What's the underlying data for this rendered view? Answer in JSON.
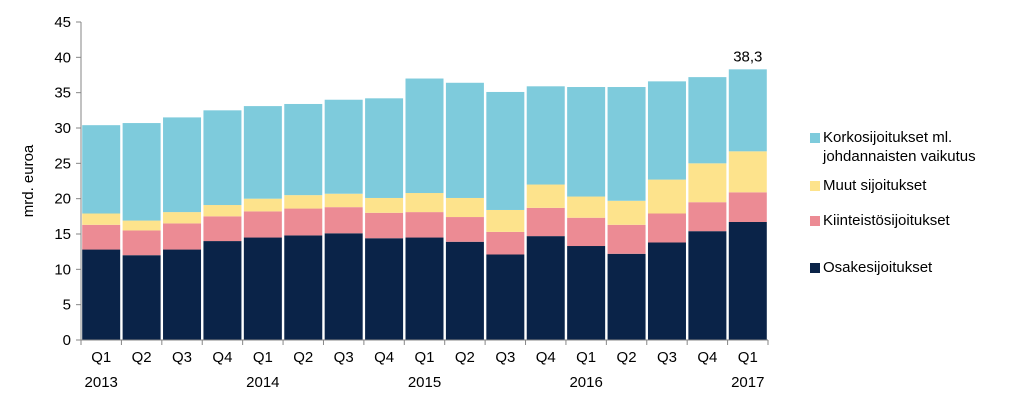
{
  "chart_data": {
    "type": "bar",
    "stacked": true,
    "ylabel": "mrd. euroa",
    "ylim": [
      0,
      45
    ],
    "yticks": [
      0,
      5,
      10,
      15,
      20,
      25,
      30,
      35,
      40,
      45
    ],
    "grid": false,
    "legend_position": "right",
    "categories": [
      "Q1",
      "Q2",
      "Q3",
      "Q4",
      "Q1",
      "Q2",
      "Q3",
      "Q4",
      "Q1",
      "Q2",
      "Q3",
      "Q4",
      "Q1",
      "Q2",
      "Q3",
      "Q4",
      "Q1"
    ],
    "year_labels": [
      {
        "index": 0,
        "label": "2013"
      },
      {
        "index": 4,
        "label": "2014"
      },
      {
        "index": 8,
        "label": "2015"
      },
      {
        "index": 12,
        "label": "2016"
      },
      {
        "index": 16,
        "label": "2017"
      }
    ],
    "series": [
      {
        "name": "Osakesijoitukset",
        "color": "#0a2348",
        "values": [
          12.8,
          12.0,
          12.8,
          14.0,
          14.5,
          14.8,
          15.1,
          14.4,
          14.5,
          13.9,
          12.1,
          14.7,
          13.3,
          12.2,
          13.8,
          15.4,
          16.7
        ]
      },
      {
        "name": "Kiinteistösijoitukset",
        "color": "#ec8b94",
        "values": [
          3.5,
          3.5,
          3.7,
          3.5,
          3.7,
          3.8,
          3.7,
          3.6,
          3.6,
          3.5,
          3.2,
          4.0,
          4.0,
          4.1,
          4.1,
          4.1,
          4.2
        ]
      },
      {
        "name": "Muut sijoitukset",
        "color": "#fde38c",
        "values": [
          1.6,
          1.4,
          1.6,
          1.6,
          1.8,
          1.9,
          1.9,
          2.1,
          2.7,
          2.7,
          3.1,
          3.3,
          3.0,
          3.4,
          4.8,
          5.5,
          5.8
        ]
      },
      {
        "name": "Korkosijoitukset ml. johdannaisten vaikutus",
        "color": "#7ecbdc",
        "values": [
          12.5,
          13.8,
          13.4,
          13.4,
          13.1,
          12.9,
          13.3,
          14.1,
          16.2,
          16.3,
          16.7,
          13.9,
          15.5,
          16.1,
          13.9,
          12.2,
          11.6
        ]
      }
    ],
    "data_labels": [
      {
        "index": 16,
        "text": "38,3"
      }
    ]
  },
  "legend": {
    "items": [
      {
        "label_lines": [
          "Korkosijoitukset ml.",
          "johdannaisten vaikutus"
        ],
        "color": "#7ecbdc"
      },
      {
        "label_lines": [
          "Muut sijoitukset"
        ],
        "color": "#fde38c"
      },
      {
        "label_lines": [
          "Kiinteistösijoitukset"
        ],
        "color": "#ec8b94"
      },
      {
        "label_lines": [
          "Osakesijoitukset"
        ],
        "color": "#0a2348"
      }
    ]
  }
}
